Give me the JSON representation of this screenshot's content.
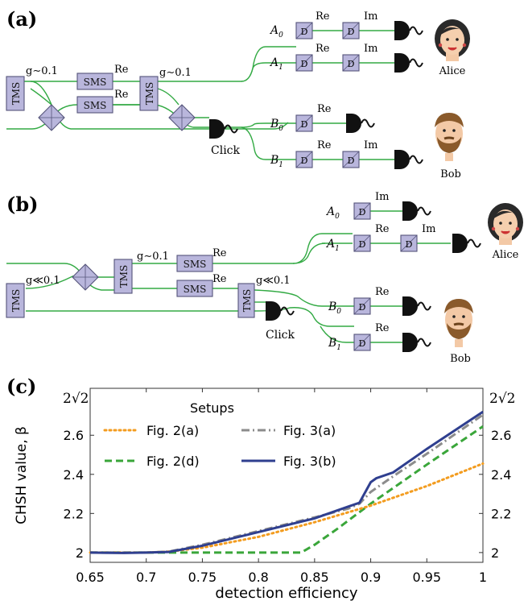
{
  "panel_a": {
    "label": "(a)",
    "g_left": "g∼0.1",
    "g_right": "g∼0.1",
    "tms": "TMS",
    "sms": "SMS",
    "re": "Re",
    "im": "Im",
    "d": "D",
    "a0": "A",
    "a1": "A",
    "b0": "B",
    "b1": "B",
    "sub0": "0",
    "sub1": "1",
    "click": "Click",
    "alice": "Alice",
    "bob": "Bob"
  },
  "panel_b": {
    "label": "(b)",
    "g_small_left": "g≪0.1",
    "g_mid": "g∼0.1",
    "g_small_right": "g≪0.1",
    "tms": "TMS",
    "sms": "SMS",
    "re": "Re",
    "im": "Im",
    "d": "D",
    "a0": "A",
    "a1": "A",
    "b0": "B",
    "b1": "B",
    "sub0": "0",
    "sub1": "1",
    "click": "Click",
    "alice": "Alice",
    "bob": "Bob"
  },
  "panel_c": {
    "label": "(c)",
    "legend_title": "Setups",
    "ylabel": "CHSH value, β",
    "xlabel": "detection efficiency",
    "top_tick": "2√2"
  },
  "colors": {
    "wire": "#33aa44",
    "box_fill": "#b9b6dc",
    "fig2a": "#f39c1f",
    "fig3a": "#8c8c8c",
    "fig2d": "#3aa63a",
    "fig3b": "#2f3f8f"
  },
  "chart_data": {
    "type": "line",
    "xlabel": "detection efficiency",
    "ylabel": "CHSH value, β",
    "xlim": [
      0.65,
      1.0
    ],
    "ylim": [
      1.95,
      2.84
    ],
    "xticks": [
      "0.65",
      "0.7",
      "0.75",
      "0.8",
      "0.85",
      "0.9",
      "0.95",
      "1"
    ],
    "xtick_values": [
      0.65,
      0.7,
      0.75,
      0.8,
      0.85,
      0.9,
      0.95,
      1.0
    ],
    "yticks": [
      "2",
      "2.2",
      "2.4",
      "2.6"
    ],
    "ytick_values": [
      2.0,
      2.2,
      2.4,
      2.6
    ],
    "legend_title": "Setups",
    "legend_position": "top-left",
    "series": [
      {
        "name": "Fig. 2(a)",
        "style": "dotted",
        "color": "#f39c1f",
        "x": [
          0.65,
          0.7,
          0.72,
          0.75,
          0.8,
          0.85,
          0.9,
          0.95,
          1.0
        ],
        "y": [
          2.0,
          2.0,
          2.005,
          2.025,
          2.08,
          2.155,
          2.24,
          2.34,
          2.455
        ]
      },
      {
        "name": "Fig. 3(a)",
        "style": "dashdot",
        "color": "#8c8c8c",
        "x": [
          0.65,
          0.7,
          0.72,
          0.75,
          0.8,
          0.85,
          0.88,
          0.89,
          0.9,
          0.92,
          0.95,
          1.0
        ],
        "y": [
          2.0,
          2.0,
          2.005,
          2.04,
          2.11,
          2.18,
          2.225,
          2.25,
          2.31,
          2.39,
          2.505,
          2.705
        ]
      },
      {
        "name": "Fig. 2(d)",
        "style": "dashed",
        "color": "#3aa63a",
        "x": [
          0.65,
          0.7,
          0.75,
          0.8,
          0.838,
          0.85,
          0.87,
          0.9,
          0.95,
          1.0
        ],
        "y": [
          2.0,
          2.0,
          2.0,
          2.0,
          2.0,
          2.04,
          2.12,
          2.25,
          2.45,
          2.645
        ]
      },
      {
        "name": "Fig. 3(b)",
        "style": "solid",
        "color": "#2f3f8f",
        "x": [
          0.65,
          0.68,
          0.7,
          0.72,
          0.75,
          0.8,
          0.85,
          0.88,
          0.89,
          0.9,
          0.905,
          0.92,
          0.95,
          1.0
        ],
        "y": [
          2.0,
          1.998,
          2.0,
          2.003,
          2.035,
          2.105,
          2.175,
          2.235,
          2.255,
          2.36,
          2.38,
          2.41,
          2.53,
          2.72
        ]
      }
    ]
  }
}
